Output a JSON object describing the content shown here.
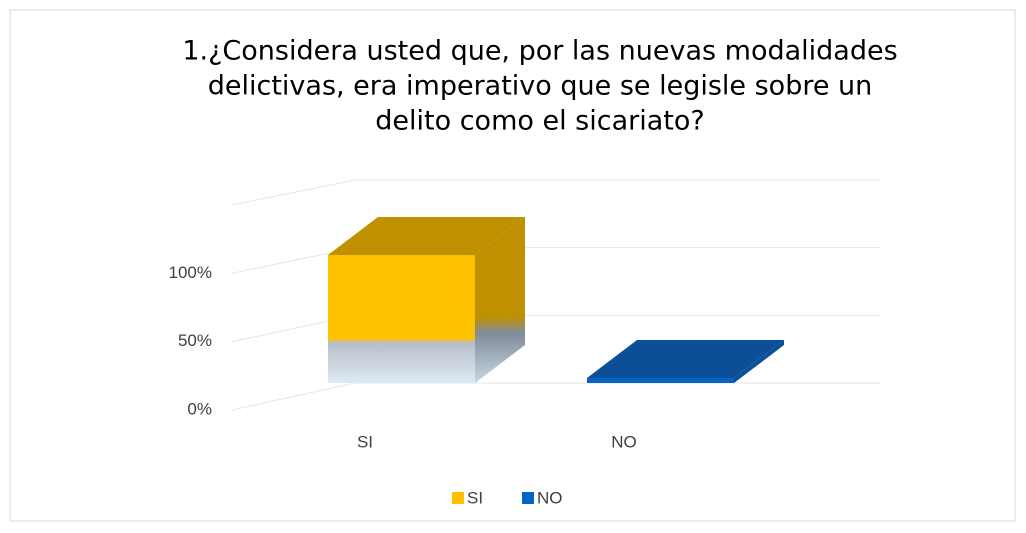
{
  "chart_data": {
    "type": "bar3d",
    "title": [
      "1.¿Considera usted que, por las nuevas modalidades",
      "delictivas, era imperativo que se legisle sobre un",
      "delito como el sicariato?"
    ],
    "categories": [
      "SI",
      "NO"
    ],
    "series": [
      {
        "name": "SI",
        "color": "#FFC000"
      },
      {
        "name": "NO",
        "color": "#0563C1"
      }
    ],
    "values": [
      100,
      0
    ],
    "ylim": [
      0,
      150
    ],
    "yticks": [
      {
        "value": 0,
        "label": "0%"
      },
      {
        "value": 50,
        "label": "50%"
      },
      {
        "value": 100,
        "label": "100%"
      }
    ],
    "grid": true,
    "legend": "bottom"
  }
}
